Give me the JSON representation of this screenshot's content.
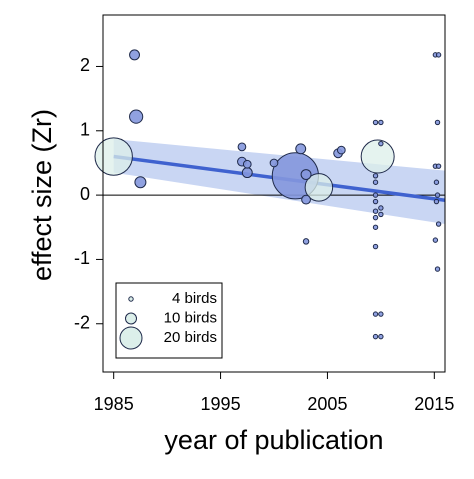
{
  "chart_data": {
    "type": "scatter",
    "x_label": "year of publication",
    "y_label": "effect size (Zr)",
    "xlim": [
      1984,
      2016
    ],
    "ylim": [
      -2.75,
      2.8
    ],
    "xticks": [
      1985,
      1995,
      2005,
      2015
    ],
    "yticks": [
      -2,
      -1,
      0,
      1,
      2
    ],
    "hline": 0,
    "series": [
      {
        "color": "#8497dd",
        "x": [
          1986.95,
          1987.1,
          1987.5,
          1997,
          1997,
          1997.5,
          1997.5,
          2000,
          2002.5,
          2002,
          2003,
          2003,
          2003,
          2006,
          2006.3,
          2009.5,
          2009.5,
          2009.5,
          2009.5,
          2009.5,
          2009.5,
          2009.5,
          2009.5,
          2009.5,
          2009.5,
          2009.5,
          2010,
          2010,
          2010,
          2010,
          2010,
          2010,
          2015.1,
          2015.4,
          2015.3,
          2015.1,
          2015.4,
          2015.2,
          2015.3,
          2015.2,
          2015.4,
          2015.1,
          2015.3
        ],
        "values": [
          2.18,
          1.22,
          0.2,
          0.75,
          0.52,
          0.48,
          0.35,
          0.5,
          0.72,
          0.3,
          0.32,
          -0.07,
          -0.72,
          0.65,
          0.7,
          1.13,
          0.3,
          0.2,
          0,
          -0.1,
          -0.25,
          -0.35,
          -0.5,
          -0.8,
          -1.85,
          -2.2,
          1.13,
          0.8,
          -0.2,
          -0.3,
          -1.85,
          -2.2,
          2.18,
          2.18,
          1.13,
          0.45,
          0.45,
          0.2,
          0,
          -0.1,
          -0.45,
          -0.7,
          -1.15
        ],
        "sizes": [
          9,
          12,
          10,
          7,
          8,
          7,
          9,
          7,
          9,
          42,
          9,
          8,
          5,
          8,
          7,
          4,
          4,
          4,
          4,
          4,
          4,
          4,
          4,
          4,
          4,
          4,
          4,
          4,
          4,
          4,
          4,
          4,
          4,
          4,
          4,
          4,
          4,
          4,
          4,
          4,
          4,
          4,
          4
        ]
      },
      {
        "color": "#dcefea",
        "x": [
          1985,
          2004.2,
          2009.7
        ],
        "values": [
          0.6,
          0.12,
          0.6
        ],
        "sizes": [
          34,
          25,
          30
        ]
      }
    ],
    "fit": {
      "color": "#3f62cf",
      "band_color": "#c9d6f3",
      "x": [
        1985,
        2016
      ],
      "values": [
        0.6,
        -0.08
      ],
      "lower": [
        0.35,
        -0.45
      ],
      "upper": [
        0.87,
        0.38
      ]
    },
    "size_legend": [
      {
        "label": "4 birds",
        "size": 4
      },
      {
        "label": "10 birds",
        "size": 10
      },
      {
        "label": "20 birds",
        "size": 20
      }
    ],
    "legend_color": "#dcefea"
  }
}
